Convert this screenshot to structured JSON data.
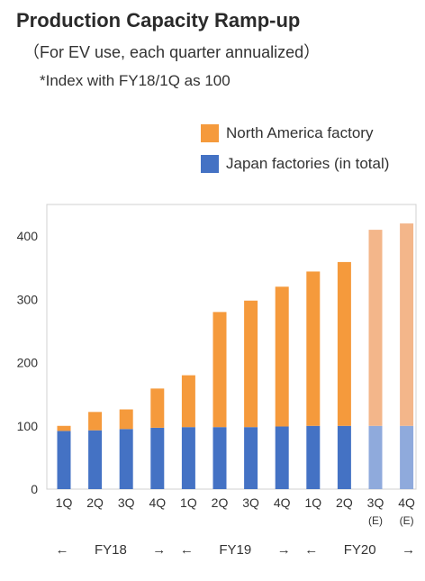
{
  "header": {
    "title": "Production Capacity Ramp-up",
    "subtitle": "（For EV use, each quarter annualized）",
    "note": "*Index with FY18/1Q as 100"
  },
  "colors": {
    "north_america": "#f59a3c",
    "north_america_estimate": "#f3b68a",
    "japan": "#4472c4",
    "japan_estimate": "#8faadc",
    "frame": "#d0d0d0",
    "axis_text": "#333333"
  },
  "chart_data": {
    "type": "bar",
    "stacked": true,
    "categories": [
      "1Q",
      "2Q",
      "3Q",
      "4Q",
      "1Q",
      "2Q",
      "3Q",
      "4Q",
      "1Q",
      "2Q",
      "3Q",
      "4Q"
    ],
    "category_sublabels": [
      "",
      "",
      "",
      "",
      "",
      "",
      "",
      "",
      "",
      "",
      "(E)",
      "(E)"
    ],
    "estimate": [
      false,
      false,
      false,
      false,
      false,
      false,
      false,
      false,
      false,
      false,
      true,
      true
    ],
    "series": [
      {
        "name": "Japan factories (in total)",
        "values": [
          92,
          93,
          95,
          97,
          98,
          98,
          98,
          99,
          100,
          100,
          100,
          100
        ]
      },
      {
        "name": "North America factory",
        "values": [
          8,
          29,
          31,
          62,
          82,
          182,
          200,
          221,
          244,
          259,
          310,
          320
        ]
      }
    ],
    "yticks": [
      0,
      100,
      200,
      300,
      400
    ],
    "ylim": [
      0,
      450
    ],
    "grid": false,
    "legend_position": "top-right",
    "fiscal_years": [
      {
        "label": "FY18",
        "left_arrow": "←",
        "right_arrow": "→"
      },
      {
        "label": "FY19",
        "left_arrow": "←",
        "right_arrow": "→"
      },
      {
        "label": "FY20",
        "left_arrow": "←",
        "right_arrow": "→"
      }
    ]
  }
}
